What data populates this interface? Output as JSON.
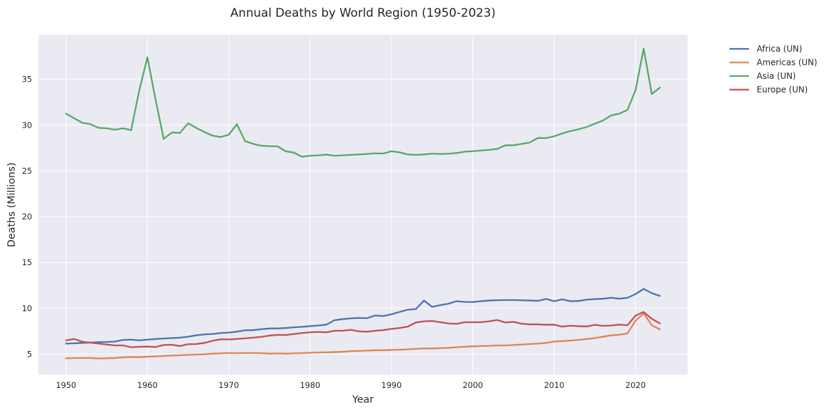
{
  "chart_data": {
    "type": "line",
    "title": "Annual Deaths by World Region (1950-2023)",
    "xlabel": "Year",
    "ylabel": "Deaths (Millions)",
    "xlim": [
      1946.6,
      2026.4
    ],
    "ylim": [
      2.75,
      39.85
    ],
    "xticks": [
      1950,
      1960,
      1970,
      1980,
      1990,
      2000,
      2010,
      2020
    ],
    "yticks": [
      5,
      10,
      15,
      20,
      25,
      30,
      35
    ],
    "grid": true,
    "legend_position": "outside-top-right",
    "x": [
      1950,
      1951,
      1952,
      1953,
      1954,
      1955,
      1956,
      1957,
      1958,
      1959,
      1960,
      1961,
      1962,
      1963,
      1964,
      1965,
      1966,
      1967,
      1968,
      1969,
      1970,
      1971,
      1972,
      1973,
      1974,
      1975,
      1976,
      1977,
      1978,
      1979,
      1980,
      1981,
      1982,
      1983,
      1984,
      1985,
      1986,
      1987,
      1988,
      1989,
      1990,
      1991,
      1992,
      1993,
      1994,
      1995,
      1996,
      1997,
      1998,
      1999,
      2000,
      2001,
      2002,
      2003,
      2004,
      2005,
      2006,
      2007,
      2008,
      2009,
      2010,
      2011,
      2012,
      2013,
      2014,
      2015,
      2016,
      2017,
      2018,
      2019,
      2020,
      2021,
      2022,
      2023
    ],
    "series": [
      {
        "name": "Africa (UN)",
        "color": "#4c72b0",
        "values": [
          6.15,
          6.18,
          6.22,
          6.26,
          6.3,
          6.33,
          6.37,
          6.55,
          6.58,
          6.5,
          6.58,
          6.65,
          6.7,
          6.75,
          6.8,
          6.9,
          7.05,
          7.15,
          7.2,
          7.3,
          7.35,
          7.45,
          7.6,
          7.62,
          7.72,
          7.8,
          7.8,
          7.85,
          7.92,
          7.98,
          8.05,
          8.12,
          8.22,
          8.7,
          8.82,
          8.9,
          8.95,
          8.92,
          9.22,
          9.15,
          9.35,
          9.6,
          9.85,
          9.92,
          10.85,
          10.15,
          10.35,
          10.5,
          10.78,
          10.7,
          10.68,
          10.78,
          10.85,
          10.88,
          10.9,
          10.9,
          10.88,
          10.85,
          10.82,
          11.02,
          10.78,
          10.98,
          10.78,
          10.8,
          10.95,
          11.0,
          11.05,
          11.15,
          11.05,
          11.15,
          11.55,
          12.12,
          11.65,
          11.35
        ]
      },
      {
        "name": "Americas (UN)",
        "color": "#dd8452",
        "values": [
          4.55,
          4.57,
          4.58,
          4.58,
          4.52,
          4.55,
          4.58,
          4.65,
          4.68,
          4.67,
          4.72,
          4.75,
          4.8,
          4.85,
          4.88,
          4.92,
          4.95,
          4.98,
          5.05,
          5.08,
          5.12,
          5.1,
          5.12,
          5.12,
          5.1,
          5.05,
          5.08,
          5.05,
          5.08,
          5.1,
          5.15,
          5.18,
          5.2,
          5.22,
          5.25,
          5.32,
          5.35,
          5.38,
          5.42,
          5.42,
          5.45,
          5.48,
          5.52,
          5.58,
          5.62,
          5.62,
          5.65,
          5.68,
          5.75,
          5.8,
          5.85,
          5.88,
          5.9,
          5.95,
          5.95,
          6.0,
          6.05,
          6.1,
          6.15,
          6.22,
          6.38,
          6.42,
          6.48,
          6.55,
          6.65,
          6.75,
          6.9,
          7.05,
          7.12,
          7.25,
          8.65,
          9.45,
          8.15,
          7.7
        ]
      },
      {
        "name": "Asia (UN)",
        "color": "#55a868",
        "values": [
          31.25,
          30.75,
          30.25,
          30.1,
          29.7,
          29.65,
          29.5,
          29.65,
          29.45,
          33.8,
          37.4,
          32.8,
          28.5,
          29.2,
          29.15,
          30.2,
          29.7,
          29.25,
          28.85,
          28.7,
          28.95,
          30.1,
          28.25,
          27.95,
          27.75,
          27.7,
          27.68,
          27.15,
          27.0,
          26.55,
          26.65,
          26.7,
          26.78,
          26.65,
          26.7,
          26.75,
          26.8,
          26.85,
          26.92,
          26.9,
          27.15,
          27.02,
          26.8,
          26.75,
          26.8,
          26.88,
          26.85,
          26.88,
          26.95,
          27.1,
          27.15,
          27.22,
          27.3,
          27.4,
          27.8,
          27.8,
          27.95,
          28.1,
          28.6,
          28.58,
          28.78,
          29.1,
          29.35,
          29.55,
          29.8,
          30.15,
          30.5,
          31.05,
          31.25,
          31.65,
          33.8,
          38.35,
          33.4,
          34.1
        ]
      },
      {
        "name": "Europe (UN)",
        "color": "#c44e52",
        "values": [
          6.5,
          6.65,
          6.35,
          6.25,
          6.15,
          6.05,
          5.95,
          5.95,
          5.75,
          5.8,
          5.82,
          5.78,
          6.0,
          6.02,
          5.88,
          6.08,
          6.1,
          6.22,
          6.45,
          6.62,
          6.6,
          6.65,
          6.72,
          6.8,
          6.88,
          7.02,
          7.1,
          7.08,
          7.2,
          7.3,
          7.38,
          7.42,
          7.38,
          7.55,
          7.55,
          7.65,
          7.48,
          7.45,
          7.55,
          7.62,
          7.75,
          7.85,
          8.0,
          8.45,
          8.58,
          8.62,
          8.48,
          8.35,
          8.3,
          8.48,
          8.48,
          8.48,
          8.58,
          8.72,
          8.45,
          8.52,
          8.32,
          8.25,
          8.25,
          8.2,
          8.22,
          8.0,
          8.1,
          8.05,
          8.02,
          8.2,
          8.08,
          8.12,
          8.22,
          8.15,
          9.2,
          9.6,
          8.85,
          8.35
        ]
      }
    ]
  }
}
